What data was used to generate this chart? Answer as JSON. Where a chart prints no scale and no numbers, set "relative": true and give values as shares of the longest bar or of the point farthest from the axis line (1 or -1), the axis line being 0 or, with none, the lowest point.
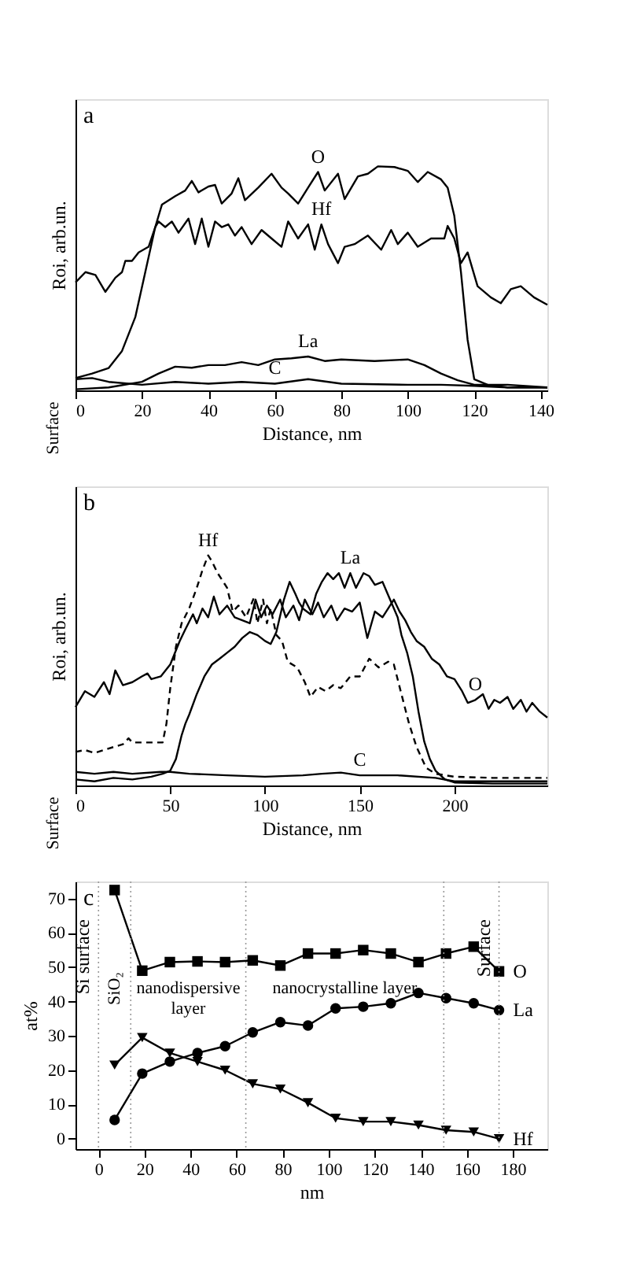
{
  "chart_data": [
    {
      "type": "line",
      "title": "a",
      "relative": true,
      "tick_labels": "x",
      "xlabel": "Distance, nm",
      "ylabel": "Roi, arb.un.",
      "xlim": [
        0,
        142
      ],
      "xticks": [
        0,
        20,
        40,
        60,
        80,
        100,
        120,
        140
      ],
      "series": [
        {
          "color": "#000000",
          "x": [
            0,
            5,
            10,
            14,
            18,
            21,
            24,
            26,
            30,
            33,
            35,
            37,
            40,
            42,
            44,
            47,
            49,
            51,
            55,
            59,
            62,
            64,
            67,
            70,
            73,
            75,
            79,
            81,
            85,
            88,
            91,
            96,
            100,
            103,
            106,
            110,
            112,
            114,
            116,
            118,
            120,
            124,
            130,
            142
          ],
          "values": [
            0.055,
            0.075,
            0.1,
            0.176,
            0.327,
            0.528,
            0.729,
            0.829,
            0.867,
            0.892,
            0.935,
            0.884,
            0.91,
            0.917,
            0.834,
            0.879,
            0.947,
            0.849,
            0.905,
            0.967,
            0.905,
            0.879,
            0.834,
            0.905,
            0.975,
            0.892,
            0.967,
            0.854,
            0.955,
            0.967,
            1.0,
            0.997,
            0.98,
            0.93,
            0.975,
            0.942,
            0.905,
            0.779,
            0.528,
            0.226,
            0.05,
            0.025,
            0.013,
            0.013
          ]
        },
        {
          "color": "#000000",
          "x": [
            0,
            3,
            6,
            9,
            12,
            14,
            15,
            17,
            19,
            22,
            24,
            25,
            27,
            29,
            31,
            34,
            36,
            38,
            40,
            42,
            44,
            46,
            48,
            50,
            53,
            56,
            59,
            62,
            64,
            67,
            70,
            72,
            74,
            76,
            79,
            81,
            84,
            88,
            92,
            95,
            97,
            100,
            103,
            107,
            111,
            112,
            114,
            116,
            118,
            121,
            125,
            128,
            131,
            134,
            138,
            142
          ],
          "values": [
            0.482,
            0.528,
            0.515,
            0.44,
            0.503,
            0.528,
            0.578,
            0.578,
            0.616,
            0.641,
            0.729,
            0.754,
            0.729,
            0.754,
            0.704,
            0.767,
            0.653,
            0.767,
            0.641,
            0.754,
            0.729,
            0.741,
            0.691,
            0.729,
            0.653,
            0.716,
            0.678,
            0.641,
            0.754,
            0.678,
            0.741,
            0.628,
            0.741,
            0.653,
            0.568,
            0.641,
            0.653,
            0.691,
            0.628,
            0.716,
            0.653,
            0.704,
            0.641,
            0.678,
            0.678,
            0.734,
            0.678,
            0.568,
            0.616,
            0.465,
            0.415,
            0.389,
            0.452,
            0.465,
            0.415,
            0.382
          ]
        },
        {
          "color": "#000000",
          "x": [
            0,
            10,
            20,
            25,
            30,
            35,
            40,
            45,
            50,
            55,
            60,
            65,
            70,
            75,
            80,
            90,
            100,
            105,
            110,
            115,
            120,
            130,
            142
          ],
          "values": [
            0.005,
            0.013,
            0.038,
            0.075,
            0.106,
            0.101,
            0.113,
            0.113,
            0.126,
            0.113,
            0.138,
            0.143,
            0.151,
            0.131,
            0.138,
            0.131,
            0.138,
            0.113,
            0.075,
            0.045,
            0.025,
            0.025,
            0.013
          ]
        },
        {
          "color": "#000000",
          "x": [
            0,
            5,
            10,
            20,
            30,
            40,
            50,
            60,
            70,
            80,
            100,
            110,
            120,
            130,
            142
          ],
          "values": [
            0.05,
            0.055,
            0.038,
            0.025,
            0.038,
            0.03,
            0.038,
            0.03,
            0.05,
            0.03,
            0.025,
            0.025,
            0.02,
            0.013,
            0.013
          ]
        }
      ],
      "annotations": [
        "Surface",
        {
          "text": "O",
          "x": 73,
          "y": 0.975
        },
        {
          "text": "Hf",
          "x": 74,
          "y": 0.741
        },
        {
          "text": "La",
          "x": 70,
          "y": 0.151
        },
        {
          "text": "C",
          "x": 60,
          "y": 0.03
        }
      ]
    },
    {
      "type": "line",
      "title": "b",
      "relative": true,
      "tick_labels": "x",
      "xlabel": "Distance, nm",
      "ylabel": "Roi, arb.un.",
      "xlim": [
        0,
        249
      ],
      "xticks": [
        0,
        50,
        100,
        150,
        200
      ],
      "series": [
        {
          "color": "#000000",
          "line_style": "dashed",
          "x": [
            0,
            5,
            10,
            15,
            20,
            25,
            28,
            30,
            40,
            46,
            48,
            50,
            53,
            56,
            60,
            64,
            67,
            70,
            72,
            75,
            78,
            80,
            83,
            86,
            90,
            94,
            96,
            99,
            101,
            103,
            106,
            109,
            112,
            117,
            121,
            124,
            128,
            132,
            136,
            140,
            145,
            150,
            155,
            160,
            165,
            168,
            172,
            176,
            180,
            185,
            190,
            200,
            220,
            249
          ],
          "values": [
            0.146,
            0.154,
            0.141,
            0.154,
            0.167,
            0.179,
            0.205,
            0.187,
            0.187,
            0.187,
            0.269,
            0.423,
            0.603,
            0.705,
            0.769,
            0.859,
            0.936,
            1.0,
            0.974,
            0.923,
            0.885,
            0.859,
            0.756,
            0.782,
            0.731,
            0.813,
            0.705,
            0.808,
            0.705,
            0.769,
            0.654,
            0.628,
            0.538,
            0.513,
            0.449,
            0.385,
            0.428,
            0.41,
            0.436,
            0.423,
            0.474,
            0.474,
            0.551,
            0.513,
            0.538,
            0.526,
            0.397,
            0.269,
            0.167,
            0.077,
            0.051,
            0.038,
            0.033,
            0.033
          ]
        },
        {
          "color": "#000000",
          "x": [
            0,
            5,
            10,
            15,
            18,
            21,
            25,
            30,
            35,
            38,
            40,
            45,
            50,
            55,
            58,
            62,
            64,
            67,
            70,
            73,
            76,
            80,
            84,
            88,
            92,
            95,
            98,
            101,
            104,
            108,
            111,
            115,
            118,
            121,
            125,
            128,
            131,
            135,
            138,
            142,
            146,
            150,
            154,
            158,
            162,
            165,
            168,
            171,
            174,
            177,
            180,
            184,
            188,
            192,
            196,
            200,
            204,
            207,
            211,
            215,
            218,
            221,
            224,
            228,
            231,
            235,
            238,
            241,
            245,
            249
          ],
          "values": [
            0.341,
            0.41,
            0.385,
            0.449,
            0.397,
            0.5,
            0.436,
            0.449,
            0.474,
            0.487,
            0.462,
            0.474,
            0.526,
            0.628,
            0.679,
            0.744,
            0.705,
            0.769,
            0.731,
            0.821,
            0.744,
            0.782,
            0.731,
            0.718,
            0.705,
            0.808,
            0.731,
            0.782,
            0.744,
            0.808,
            0.731,
            0.782,
            0.718,
            0.808,
            0.744,
            0.795,
            0.731,
            0.782,
            0.718,
            0.769,
            0.756,
            0.795,
            0.641,
            0.756,
            0.731,
            0.769,
            0.808,
            0.756,
            0.718,
            0.667,
            0.628,
            0.603,
            0.551,
            0.526,
            0.474,
            0.462,
            0.41,
            0.359,
            0.372,
            0.397,
            0.333,
            0.372,
            0.359,
            0.385,
            0.333,
            0.372,
            0.321,
            0.359,
            0.321,
            0.295
          ]
        },
        {
          "color": "#000000",
          "x": [
            0,
            10,
            20,
            30,
            40,
            46,
            50,
            53,
            56,
            58,
            60,
            64,
            68,
            72,
            76,
            80,
            84,
            88,
            92,
            96,
            100,
            103,
            106,
            110,
            113,
            116,
            118,
            120,
            124,
            127,
            130,
            133,
            136,
            139,
            142,
            145,
            148,
            152,
            155,
            158,
            162,
            166,
            170,
            172,
            175,
            178,
            181,
            184,
            187,
            190,
            195,
            200,
            220,
            249
          ],
          "values": [
            0.026,
            0.018,
            0.033,
            0.026,
            0.038,
            0.051,
            0.064,
            0.115,
            0.218,
            0.269,
            0.308,
            0.397,
            0.474,
            0.526,
            0.551,
            0.577,
            0.603,
            0.641,
            0.667,
            0.654,
            0.628,
            0.615,
            0.667,
            0.808,
            0.885,
            0.833,
            0.795,
            0.769,
            0.744,
            0.833,
            0.885,
            0.923,
            0.897,
            0.923,
            0.859,
            0.923,
            0.859,
            0.923,
            0.91,
            0.872,
            0.885,
            0.808,
            0.731,
            0.654,
            0.577,
            0.474,
            0.321,
            0.192,
            0.115,
            0.064,
            0.026,
            0.013,
            0.008,
            0.008
          ]
        },
        {
          "color": "#000000",
          "x": [
            0,
            10,
            20,
            30,
            45,
            50,
            60,
            80,
            100,
            120,
            130,
            140,
            150,
            170,
            190,
            200,
            249
          ],
          "values": [
            0.059,
            0.051,
            0.059,
            0.051,
            0.059,
            0.059,
            0.051,
            0.044,
            0.038,
            0.044,
            0.051,
            0.056,
            0.044,
            0.044,
            0.033,
            0.018,
            0.018
          ]
        }
      ],
      "annotations": [
        "Surface",
        {
          "text": "Hf",
          "x": 70,
          "y": 1.0
        },
        {
          "text": "La",
          "x": 145,
          "y": 0.923
        },
        {
          "text": "O",
          "x": 211,
          "y": 0.372
        },
        {
          "text": "C",
          "x": 150,
          "y": 0.044
        }
      ]
    },
    {
      "type": "line",
      "title": "c",
      "xlabel": "nm",
      "ylabel": "at%",
      "xlim": [
        -10,
        195
      ],
      "xticks": [
        0,
        20,
        40,
        60,
        80,
        100,
        120,
        140,
        160,
        180
      ],
      "ylim": [
        -3,
        75
      ],
      "yticks": [
        0,
        10,
        20,
        30,
        40,
        50,
        60,
        70
      ],
      "x": [
        7,
        19,
        31,
        43,
        55,
        67,
        79,
        91,
        103,
        115,
        127,
        139,
        151,
        163,
        174
      ],
      "series": [
        {
          "color": "#000000",
          "marker": "square",
          "values": [
            72.5,
            49,
            51.5,
            51.7,
            51.5,
            52,
            50.5,
            54,
            54,
            55,
            54,
            51.5,
            54,
            56,
            48.8
          ]
        },
        {
          "color": "#000000",
          "marker": "circle",
          "values": [
            5.5,
            19,
            22.5,
            25,
            27,
            31,
            34,
            33,
            38,
            38.5,
            39.5,
            42.5,
            41,
            39.5,
            37.5
          ]
        },
        {
          "color": "#000000",
          "marker": "triangle",
          "values": [
            21.5,
            29.5,
            25,
            22.5,
            20,
            16,
            14.5,
            10.5,
            6,
            5,
            5,
            4,
            2.5,
            2,
            0
          ]
        }
      ],
      "ref_lines": [
        {
          "axis": "x",
          "value": 0,
          "color": "#999999",
          "line_style": "dotted",
          "label": "Si surface"
        },
        {
          "axis": "x",
          "value": 14,
          "color": "#999999",
          "line_style": "dotted"
        },
        {
          "axis": "x",
          "value": 64,
          "color": "#999999",
          "line_style": "dotted"
        },
        {
          "axis": "x",
          "value": 150,
          "color": "#999999",
          "line_style": "dotted"
        },
        {
          "axis": "x",
          "value": 174,
          "color": "#999999",
          "line_style": "dotted",
          "label": "Surface"
        }
      ],
      "annotations": [
        "SiO₂",
        "nanodispersive\nlayer",
        "nanocrystalline layer",
        {
          "text": "O",
          "x": 174,
          "y": 48.8
        },
        {
          "text": "La",
          "x": 174,
          "y": 37.5
        },
        {
          "text": "Hf",
          "x": 174,
          "y": 0
        }
      ]
    }
  ]
}
